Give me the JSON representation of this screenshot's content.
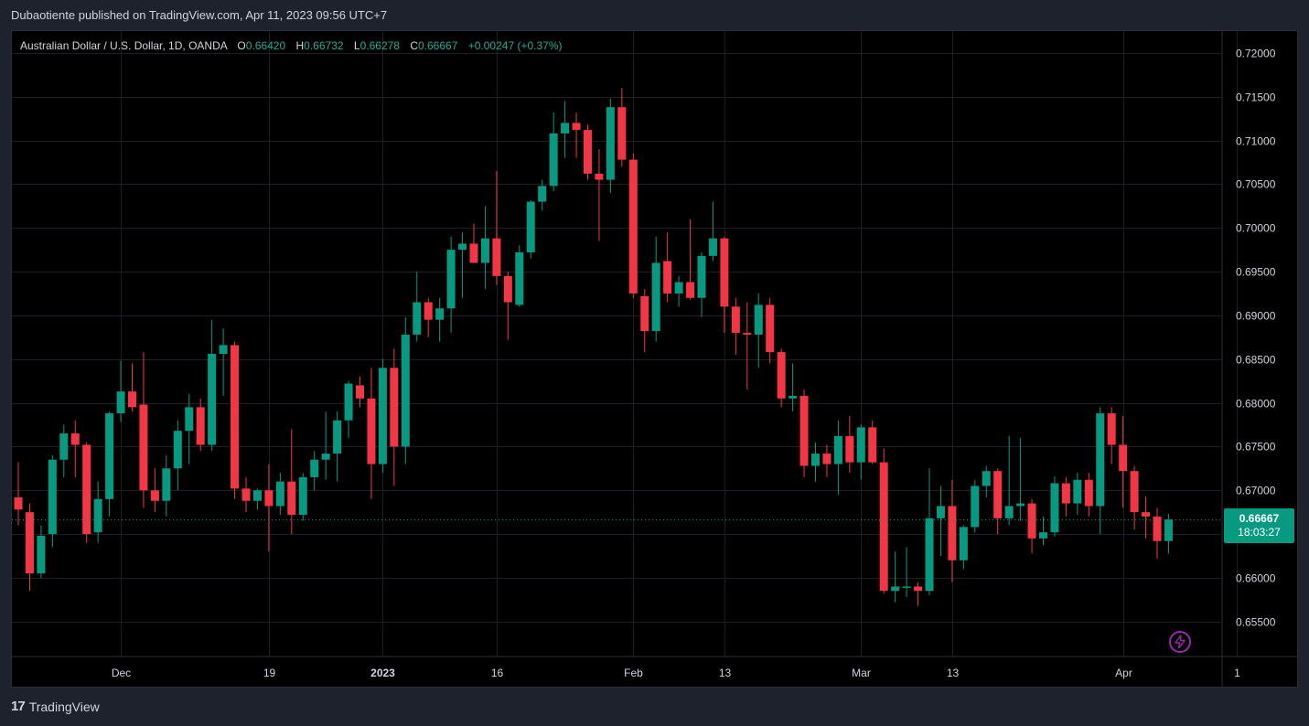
{
  "header": {
    "published_text": "Dubaotiente published on TradingView.com, Apr 11, 2023 09:56 UTC+7"
  },
  "legend": {
    "symbol": "Australian Dollar / U.S. Dollar, 1D, OANDA",
    "o_label": "O",
    "o_value": "0.66420",
    "h_label": "H",
    "h_value": "0.66732",
    "l_label": "L",
    "l_value": "0.66278",
    "c_label": "C",
    "c_value": "0.66667",
    "change": "+0.00247 (+0.37%)"
  },
  "last_price": {
    "price": "0.66667",
    "countdown": "18:03:27"
  },
  "footer": {
    "brand": "TradingView"
  },
  "colors": {
    "up": "#089981",
    "down": "#f23645",
    "background": "#000000",
    "grid": "#1c1f26",
    "axis_text": "#d1d4dc"
  },
  "chart_data": {
    "type": "candlestick",
    "title": "Australian Dollar / U.S. Dollar, 1D, OANDA",
    "ylim": [
      0.651,
      0.7225
    ],
    "y_ticks": [
      "0.72000",
      "0.71500",
      "0.71000",
      "0.70500",
      "0.70000",
      "0.69500",
      "0.69000",
      "0.68500",
      "0.68000",
      "0.67500",
      "0.67000",
      "0.66500",
      "0.66000",
      "0.65500"
    ],
    "y_tick_values": [
      0.72,
      0.715,
      0.71,
      0.705,
      0.7,
      0.695,
      0.69,
      0.685,
      0.68,
      0.675,
      0.67,
      0.665,
      0.66,
      0.655
    ],
    "x_ticks": [
      {
        "label": "Dec",
        "index": 9,
        "bold": false
      },
      {
        "label": "19",
        "index": 22,
        "bold": false
      },
      {
        "label": "2023",
        "index": 32,
        "bold": true
      },
      {
        "label": "16",
        "index": 42,
        "bold": false
      },
      {
        "label": "Feb",
        "index": 54,
        "bold": false
      },
      {
        "label": "13",
        "index": 62,
        "bold": false
      },
      {
        "label": "Mar",
        "index": 74,
        "bold": false
      },
      {
        "label": "13",
        "index": 82,
        "bold": false
      },
      {
        "label": "Apr",
        "index": 97,
        "bold": false
      },
      {
        "label": "1",
        "index": 107,
        "bold": false
      }
    ],
    "grid": true,
    "last_price": 0.66667,
    "candles": [
      [
        0.6692,
        0.6732,
        0.666,
        0.6678
      ],
      [
        0.6675,
        0.6685,
        0.6585,
        0.6605
      ],
      [
        0.6605,
        0.666,
        0.66,
        0.6648
      ],
      [
        0.665,
        0.674,
        0.6635,
        0.6735
      ],
      [
        0.6735,
        0.6775,
        0.6715,
        0.6765
      ],
      [
        0.6765,
        0.678,
        0.6715,
        0.6752
      ],
      [
        0.6752,
        0.6755,
        0.664,
        0.665
      ],
      [
        0.6652,
        0.671,
        0.664,
        0.669
      ],
      [
        0.669,
        0.679,
        0.667,
        0.6788
      ],
      [
        0.6788,
        0.6848,
        0.6778,
        0.6813
      ],
      [
        0.6813,
        0.6845,
        0.679,
        0.6795
      ],
      [
        0.6798,
        0.6858,
        0.668,
        0.67
      ],
      [
        0.67,
        0.6725,
        0.6675,
        0.6688
      ],
      [
        0.6688,
        0.674,
        0.667,
        0.6725
      ],
      [
        0.6725,
        0.678,
        0.67,
        0.6768
      ],
      [
        0.6768,
        0.681,
        0.673,
        0.6795
      ],
      [
        0.6795,
        0.6805,
        0.6745,
        0.6752
      ],
      [
        0.6752,
        0.6895,
        0.6745,
        0.6856
      ],
      [
        0.6856,
        0.6885,
        0.6808,
        0.6866
      ],
      [
        0.6866,
        0.687,
        0.669,
        0.6702
      ],
      [
        0.6702,
        0.6715,
        0.6675,
        0.6688
      ],
      [
        0.6688,
        0.6702,
        0.6678,
        0.67
      ],
      [
        0.67,
        0.673,
        0.663,
        0.6682
      ],
      [
        0.6682,
        0.672,
        0.6672,
        0.671
      ],
      [
        0.671,
        0.677,
        0.665,
        0.6672
      ],
      [
        0.6672,
        0.672,
        0.6665,
        0.6715
      ],
      [
        0.6715,
        0.6745,
        0.67,
        0.6735
      ],
      [
        0.6735,
        0.679,
        0.6712,
        0.6742
      ],
      [
        0.6742,
        0.679,
        0.671,
        0.678
      ],
      [
        0.678,
        0.6825,
        0.676,
        0.6822
      ],
      [
        0.682,
        0.683,
        0.6795,
        0.6805
      ],
      [
        0.6805,
        0.684,
        0.669,
        0.673
      ],
      [
        0.673,
        0.685,
        0.672,
        0.684
      ],
      [
        0.684,
        0.6862,
        0.6705,
        0.675
      ],
      [
        0.675,
        0.6898,
        0.673,
        0.6878
      ],
      [
        0.6878,
        0.695,
        0.687,
        0.6915
      ],
      [
        0.6915,
        0.692,
        0.6875,
        0.6895
      ],
      [
        0.6895,
        0.692,
        0.687,
        0.6908
      ],
      [
        0.6908,
        0.699,
        0.688,
        0.6975
      ],
      [
        0.6975,
        0.6995,
        0.692,
        0.6982
      ],
      [
        0.6982,
        0.7005,
        0.696,
        0.696
      ],
      [
        0.696,
        0.7025,
        0.693,
        0.6988
      ],
      [
        0.6988,
        0.7065,
        0.6935,
        0.6945
      ],
      [
        0.6945,
        0.695,
        0.6872,
        0.6915
      ],
      [
        0.6912,
        0.698,
        0.691,
        0.6972
      ],
      [
        0.6972,
        0.7032,
        0.6965,
        0.703
      ],
      [
        0.703,
        0.7055,
        0.702,
        0.7048
      ],
      [
        0.7048,
        0.7132,
        0.7042,
        0.7108
      ],
      [
        0.7108,
        0.7145,
        0.708,
        0.712
      ],
      [
        0.712,
        0.7132,
        0.708,
        0.7112
      ],
      [
        0.7112,
        0.7118,
        0.7055,
        0.7062
      ],
      [
        0.7062,
        0.709,
        0.6985,
        0.7055
      ],
      [
        0.7055,
        0.7148,
        0.704,
        0.7138
      ],
      [
        0.7138,
        0.716,
        0.707,
        0.7078
      ],
      [
        0.7078,
        0.7085,
        0.692,
        0.6925
      ],
      [
        0.6922,
        0.693,
        0.6858,
        0.6882
      ],
      [
        0.6882,
        0.699,
        0.687,
        0.696
      ],
      [
        0.6962,
        0.6995,
        0.6915,
        0.6925
      ],
      [
        0.6925,
        0.6945,
        0.691,
        0.6938
      ],
      [
        0.6938,
        0.701,
        0.6918,
        0.692
      ],
      [
        0.692,
        0.6972,
        0.6898,
        0.6968
      ],
      [
        0.6968,
        0.703,
        0.6962,
        0.6988
      ],
      [
        0.6988,
        0.699,
        0.688,
        0.691
      ],
      [
        0.691,
        0.692,
        0.6855,
        0.688
      ],
      [
        0.688,
        0.6915,
        0.6815,
        0.6878
      ],
      [
        0.6878,
        0.6925,
        0.684,
        0.6912
      ],
      [
        0.6912,
        0.692,
        0.6845,
        0.6858
      ],
      [
        0.6858,
        0.6862,
        0.6795,
        0.6805
      ],
      [
        0.6805,
        0.6845,
        0.679,
        0.6808
      ],
      [
        0.6808,
        0.6815,
        0.6715,
        0.6728
      ],
      [
        0.6728,
        0.6755,
        0.671,
        0.6742
      ],
      [
        0.6742,
        0.6752,
        0.6715,
        0.673
      ],
      [
        0.673,
        0.678,
        0.6695,
        0.6762
      ],
      [
        0.6762,
        0.6785,
        0.672,
        0.6732
      ],
      [
        0.6732,
        0.6775,
        0.6712,
        0.6772
      ],
      [
        0.6772,
        0.678,
        0.673,
        0.6732
      ],
      [
        0.6732,
        0.6748,
        0.6582,
        0.6585
      ],
      [
        0.6585,
        0.663,
        0.6572,
        0.659
      ],
      [
        0.659,
        0.6635,
        0.6578,
        0.659
      ],
      [
        0.659,
        0.6595,
        0.6568,
        0.6585
      ],
      [
        0.6585,
        0.6725,
        0.658,
        0.6668
      ],
      [
        0.6668,
        0.6705,
        0.6625,
        0.6682
      ],
      [
        0.6682,
        0.6712,
        0.6595,
        0.662
      ],
      [
        0.662,
        0.666,
        0.661,
        0.6658
      ],
      [
        0.6658,
        0.6712,
        0.6652,
        0.6705
      ],
      [
        0.6705,
        0.6728,
        0.6692,
        0.6722
      ],
      [
        0.6722,
        0.6725,
        0.665,
        0.6668
      ],
      [
        0.6668,
        0.6762,
        0.666,
        0.6682
      ],
      [
        0.6682,
        0.676,
        0.6665,
        0.6685
      ],
      [
        0.6685,
        0.669,
        0.6628,
        0.6645
      ],
      [
        0.6645,
        0.667,
        0.6637,
        0.6652
      ],
      [
        0.6652,
        0.6716,
        0.6647,
        0.6708
      ],
      [
        0.6708,
        0.6715,
        0.667,
        0.6685
      ],
      [
        0.6685,
        0.672,
        0.6672,
        0.6712
      ],
      [
        0.6712,
        0.672,
        0.667,
        0.6682
      ],
      [
        0.6682,
        0.6795,
        0.665,
        0.6788
      ],
      [
        0.6788,
        0.6795,
        0.673,
        0.6752
      ],
      [
        0.6752,
        0.6785,
        0.668,
        0.6722
      ],
      [
        0.6722,
        0.6728,
        0.6655,
        0.6675
      ],
      [
        0.6675,
        0.6693,
        0.6645,
        0.667
      ],
      [
        0.667,
        0.668,
        0.6622,
        0.6642
      ],
      [
        0.6642,
        0.66732,
        0.66278,
        0.66667
      ]
    ]
  }
}
